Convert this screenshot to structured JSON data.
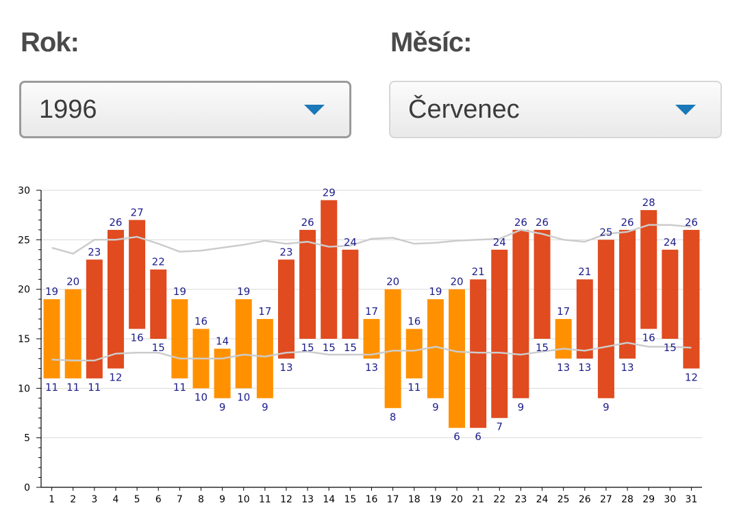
{
  "filters": {
    "year_label": "Rok:",
    "year_value": "1996",
    "month_label": "Měsíc:",
    "month_value": "Červenec"
  },
  "colors": {
    "bar_orange": "#ff9100",
    "bar_red": "#e04b1f",
    "label_blue": "#1c1c8c",
    "avg_line": "#cccccc",
    "grid": "#d9d9d9"
  },
  "chart_data": {
    "type": "bar",
    "subtype": "floating-range",
    "title": "",
    "xlabel": "",
    "ylabel": "",
    "ylim": [
      0,
      30
    ],
    "yticks": [
      0,
      5,
      10,
      15,
      20,
      25,
      30
    ],
    "grid": "horizontal",
    "categories": [
      "1",
      "2",
      "3",
      "4",
      "5",
      "6",
      "7",
      "8",
      "9",
      "10",
      "11",
      "12",
      "13",
      "14",
      "15",
      "16",
      "17",
      "18",
      "19",
      "20",
      "21",
      "22",
      "23",
      "24",
      "25",
      "26",
      "27",
      "28",
      "29",
      "30",
      "31"
    ],
    "max": [
      19,
      20,
      23,
      26,
      27,
      22,
      19,
      16,
      14,
      19,
      17,
      23,
      26,
      29,
      24,
      17,
      20,
      16,
      19,
      20,
      21,
      24,
      26,
      26,
      17,
      21,
      25,
      26,
      28,
      24,
      26
    ],
    "min": [
      11,
      11,
      11,
      12,
      16,
      15,
      11,
      10,
      9,
      10,
      9,
      13,
      15,
      15,
      15,
      13,
      8,
      11,
      9,
      6,
      6,
      7,
      9,
      15,
      13,
      13,
      9,
      13,
      16,
      15,
      12
    ],
    "bar_color": [
      "orange",
      "orange",
      "red",
      "red",
      "red",
      "red",
      "orange",
      "orange",
      "orange",
      "orange",
      "orange",
      "red",
      "red",
      "red",
      "red",
      "orange",
      "orange",
      "orange",
      "orange",
      "orange",
      "red",
      "red",
      "red",
      "red",
      "orange",
      "red",
      "red",
      "red",
      "red",
      "red",
      "red"
    ],
    "avg_max": [
      24.2,
      23.6,
      25.0,
      25.0,
      25.3,
      24.6,
      23.8,
      23.9,
      24.2,
      24.5,
      24.9,
      24.6,
      24.8,
      24.3,
      24.4,
      25.1,
      25.2,
      24.6,
      24.7,
      24.9,
      25.0,
      25.1,
      26.0,
      25.6,
      25.0,
      24.8,
      25.6,
      25.8,
      26.5,
      26.5,
      26.3
    ],
    "avg_min": [
      12.9,
      12.8,
      12.8,
      13.5,
      13.6,
      13.6,
      13.0,
      13.0,
      13.0,
      13.4,
      13.2,
      13.6,
      13.7,
      13.4,
      13.4,
      13.4,
      13.8,
      13.8,
      14.2,
      13.7,
      13.6,
      13.6,
      13.4,
      13.7,
      14.0,
      13.8,
      14.2,
      14.6,
      14.2,
      14.2,
      14.1
    ]
  }
}
